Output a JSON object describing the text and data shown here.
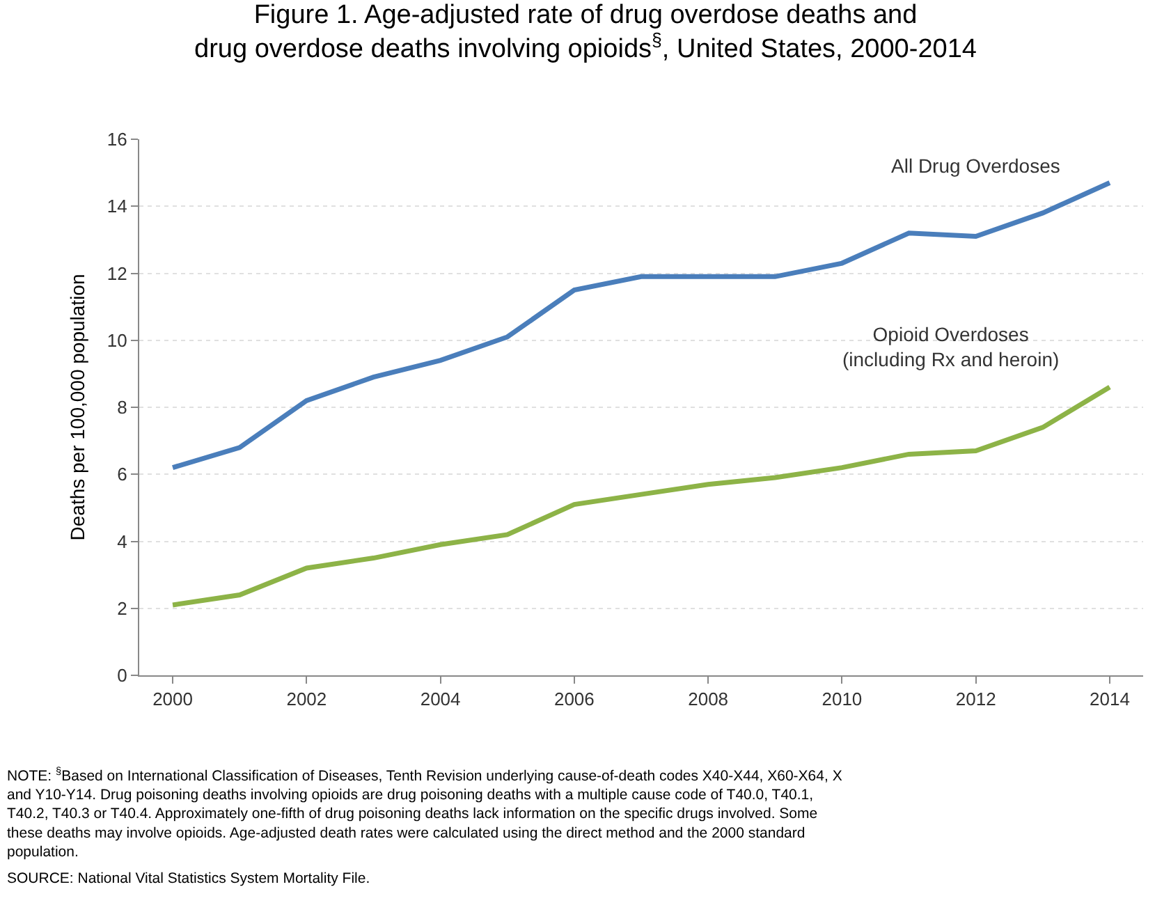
{
  "chart_data": {
    "type": "line",
    "title": "Figure 1. Age-adjusted rate of drug overdose deaths and\ndrug overdose deaths involving opioids$^{§}$, United States, 2000-2014",
    "ylabel": "Deaths per 100,000 population",
    "x": [
      2000,
      2001,
      2002,
      2003,
      2004,
      2005,
      2006,
      2007,
      2008,
      2009,
      2010,
      2011,
      2012,
      2013,
      2014
    ],
    "series": [
      {
        "name": "All Drug Overdoses",
        "color": "#4a7ebb",
        "values": [
          6.2,
          6.8,
          8.2,
          8.9,
          9.4,
          10.1,
          11.5,
          11.9,
          11.9,
          11.9,
          12.3,
          13.2,
          13.1,
          13.8,
          14.7
        ]
      },
      {
        "name": "Opioid Overdoses\n(including Rx and heroin)",
        "color": "#8db347",
        "values": [
          2.1,
          2.4,
          3.2,
          3.5,
          3.9,
          4.2,
          5.1,
          5.4,
          5.7,
          5.9,
          6.2,
          6.6,
          6.7,
          7.4,
          8.6
        ]
      }
    ],
    "xlim": [
      1999.5,
      2014.5
    ],
    "xticks": [
      2000,
      2002,
      2004,
      2006,
      2008,
      2010,
      2012,
      2014
    ],
    "ylim": [
      0,
      16
    ],
    "yticks": [
      0,
      2,
      4,
      6,
      8,
      10,
      12,
      14,
      16
    ],
    "grid": "y",
    "legend": false,
    "marker": "none",
    "line_style": "solid",
    "annotations": [
      "NOTE: $^{§}$Based on International Classification of Diseases, Tenth Revision underlying cause-of-death codes X40-X44, X60-X64, X\nand Y10-Y14. Drug poisoning deaths involving opioids are drug poisoning deaths with a multiple cause code of T40.0, T40.1,\nT40.2, T40.3 or T40.4. Approximately one-fifth of drug poisoning deaths lack information on the specific drugs involved. Some\nthese deaths may involve opioids. Age-adjusted death rates were calculated using the direct method and the 2000 standard\npopulation.",
      "SOURCE: National Vital Statistics System Mortality File."
    ]
  }
}
